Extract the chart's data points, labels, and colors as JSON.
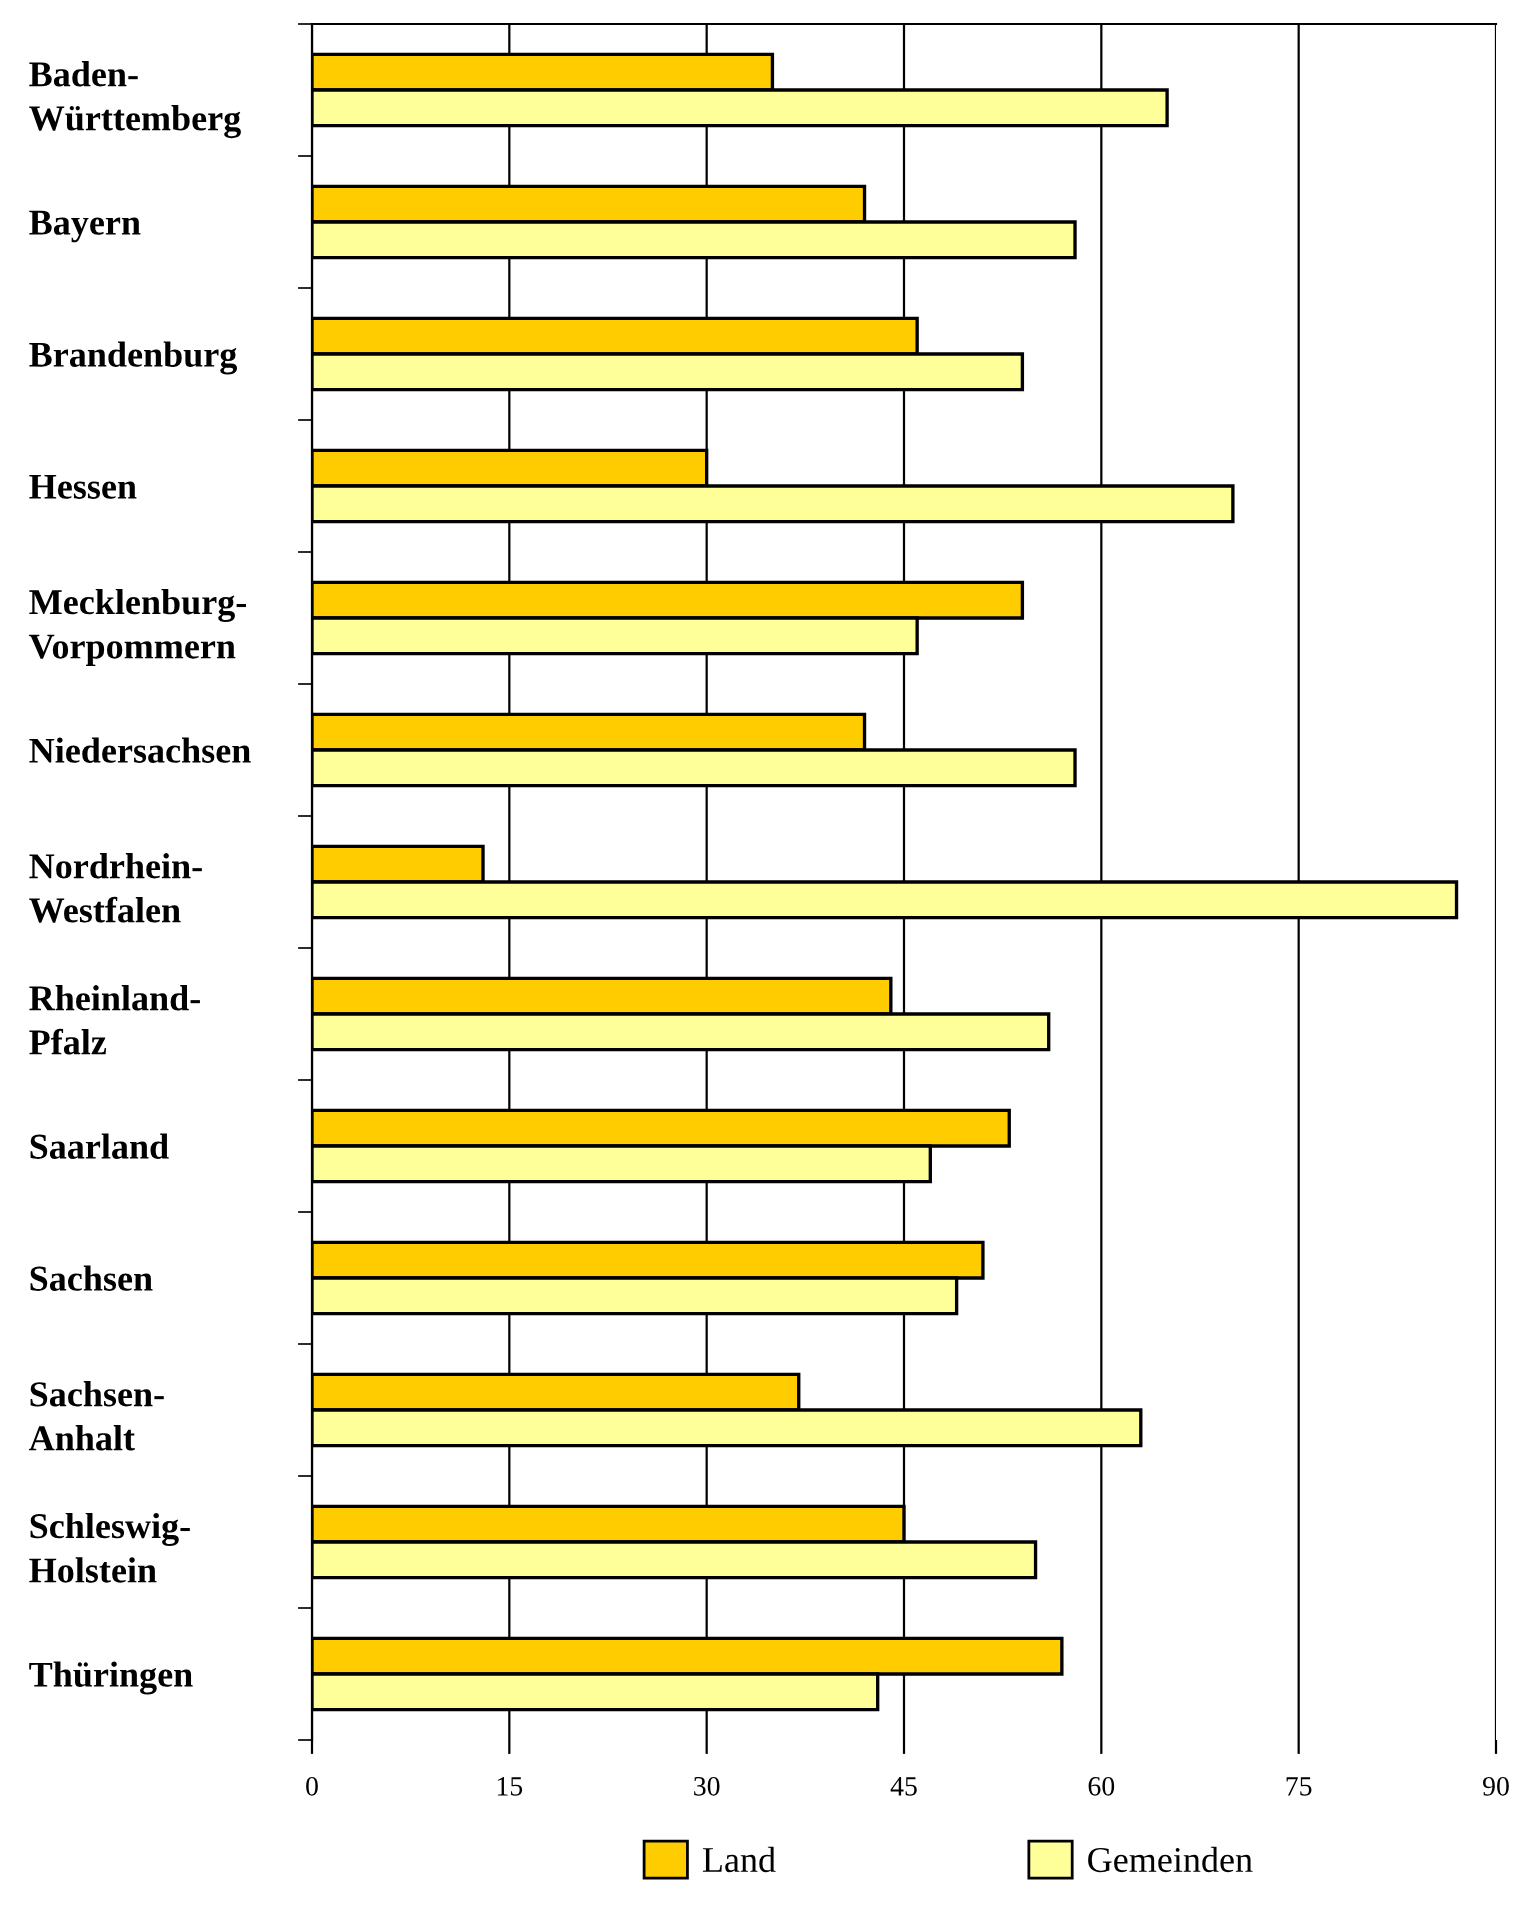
{
  "chart_data": {
    "type": "bar",
    "orientation": "horizontal",
    "categories": [
      "Baden-\nWürttemberg",
      "Bayern",
      "Brandenburg",
      "Hessen",
      "Mecklenburg-\nVorpommern",
      "Niedersachsen",
      "Nordrhein-\nWestfalen",
      "Rheinland-\nPfalz",
      "Saarland",
      "Sachsen",
      "Sachsen-\nAnhalt",
      "Schleswig-\nHolstein",
      "Thüringen"
    ],
    "series": [
      {
        "name": "Land",
        "color": "#ffcc00",
        "values": [
          35,
          42,
          46,
          30,
          54,
          42,
          13,
          44,
          53,
          51,
          37,
          45,
          57
        ]
      },
      {
        "name": "Gemeinden",
        "color": "#ffff99",
        "values": [
          65,
          58,
          54,
          70,
          46,
          58,
          87,
          56,
          47,
          49,
          63,
          55,
          43
        ]
      }
    ],
    "xlim": [
      0,
      90
    ],
    "xticks": [
      0,
      15,
      30,
      45,
      60,
      75,
      90
    ],
    "grid": "x",
    "legend": "bottom"
  }
}
